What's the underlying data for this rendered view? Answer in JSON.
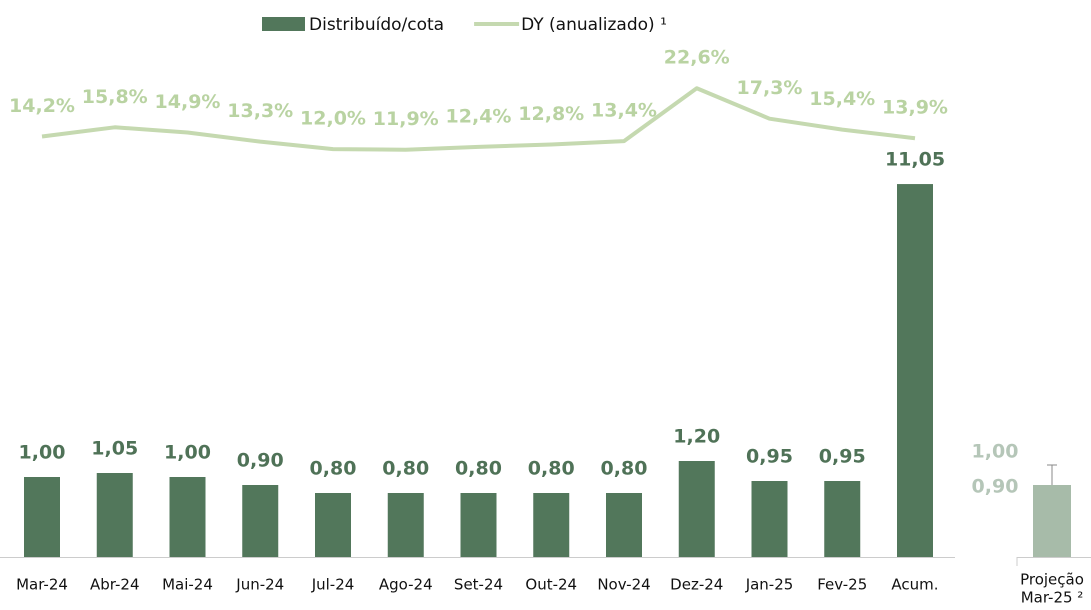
{
  "chart_data": {
    "type": "bar",
    "categories": [
      "Mar-24",
      "Abr-24",
      "Mai-24",
      "Jun-24",
      "Jul-24",
      "Ago-24",
      "Set-24",
      "Out-24",
      "Nov-24",
      "Dez-24",
      "Jan-25",
      "Fev-25",
      "Acum."
    ],
    "ylim": [
      0,
      6.75
    ],
    "y2lim": [
      0,
      16
    ],
    "y3lim": [
      -59,
      35
    ],
    "series": [
      {
        "name": "Distribuído/cota",
        "type": "bar",
        "color": "#52775b",
        "axis": "y",
        "values": [
          1.0,
          1.05,
          1.0,
          0.9,
          0.8,
          0.8,
          0.8,
          0.8,
          0.8,
          1.2,
          0.95,
          0.95,
          null
        ],
        "value_labels": [
          "1,00",
          "1,05",
          "1,00",
          "0,90",
          "0,80",
          "0,80",
          "0,80",
          "0,80",
          "0,80",
          "1,20",
          "0,95",
          "0,95",
          null
        ]
      },
      {
        "type": "bar",
        "color": "#52775b",
        "axis": "y2",
        "values": [
          null,
          null,
          null,
          null,
          null,
          null,
          null,
          null,
          null,
          null,
          null,
          null,
          11.05
        ],
        "value_labels": [
          null,
          null,
          null,
          null,
          null,
          null,
          null,
          null,
          null,
          null,
          null,
          null,
          "11,05"
        ]
      },
      {
        "name": "DY (anualizado) ¹",
        "type": "line",
        "color": "#c5d9b0",
        "axis": "y3",
        "values": [
          14.2,
          15.8,
          14.9,
          13.3,
          12.0,
          11.9,
          12.4,
          12.8,
          13.4,
          22.6,
          17.3,
          15.4,
          13.9
        ],
        "value_labels": [
          "14,2%",
          "15,8%",
          "14,9%",
          "13,3%",
          "12,0%",
          "11,9%",
          "12,4%",
          "12,8%",
          "13,4%",
          "22,6%",
          "17,3%",
          "15,4%",
          "13,9%"
        ]
      }
    ],
    "projection": {
      "label": [
        "Projeção",
        "Mar-25 ²"
      ],
      "color": "#a7bba9",
      "values": [
        0.9,
        1.0
      ],
      "value_labels": [
        "0,90",
        "1,00"
      ]
    }
  }
}
